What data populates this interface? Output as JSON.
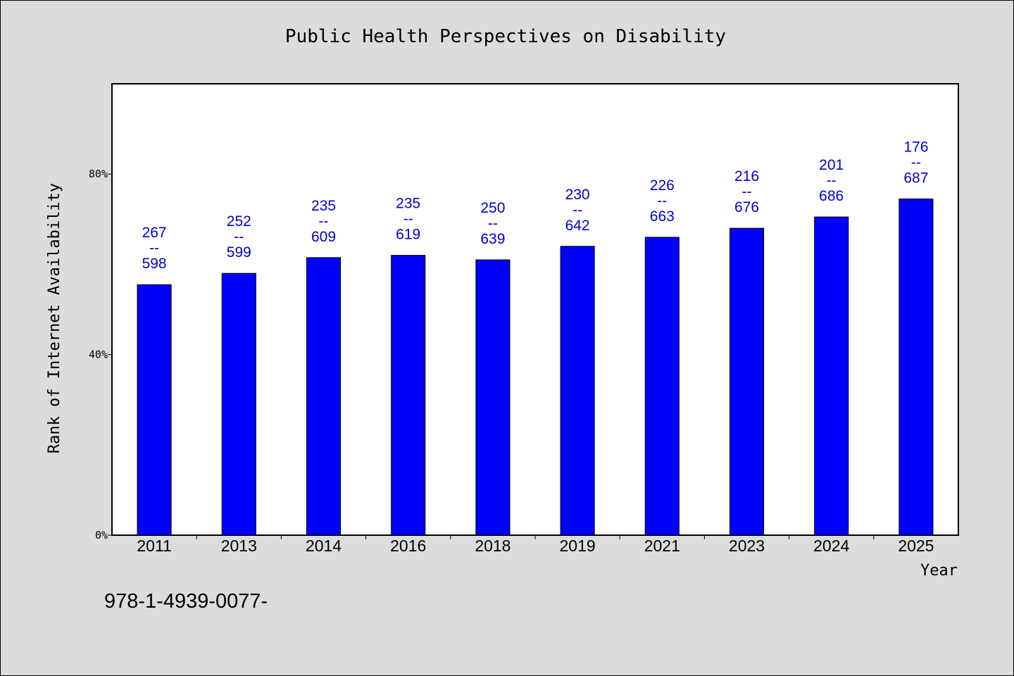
{
  "chart_data": {
    "type": "bar",
    "title": "Public Health Perspectives on Disability",
    "xlabel": "Year",
    "ylabel": "Rank of Internet Availability",
    "categories": [
      "2011",
      "2013",
      "2014",
      "2016",
      "2018",
      "2019",
      "2021",
      "2023",
      "2024",
      "2025"
    ],
    "values": [
      55.5,
      58.0,
      61.5,
      62.0,
      61.0,
      64.0,
      66.0,
      68.0,
      70.5,
      74.5
    ],
    "data_labels": [
      [
        "267",
        "--",
        "598"
      ],
      [
        "252",
        "--",
        "599"
      ],
      [
        "235",
        "--",
        "609"
      ],
      [
        "235",
        "--",
        "619"
      ],
      [
        "250",
        "--",
        "639"
      ],
      [
        "230",
        "--",
        "642"
      ],
      [
        "226",
        "--",
        "663"
      ],
      [
        "216",
        "--",
        "676"
      ],
      [
        "201",
        "--",
        "686"
      ],
      [
        "176",
        "--",
        "687"
      ]
    ],
    "yticks": [
      {
        "value": 0,
        "label": "0%"
      },
      {
        "value": 40,
        "label": "40%"
      },
      {
        "value": 80,
        "label": "80%"
      }
    ],
    "ylim": [
      0,
      100
    ],
    "grid": false,
    "colors": {
      "bar": "#0000ff",
      "data_label": "#0000cc",
      "plot_bg": "#ffffff",
      "page_bg": "#dcdcdc"
    }
  },
  "footnote": "978-1-4939-0077-"
}
